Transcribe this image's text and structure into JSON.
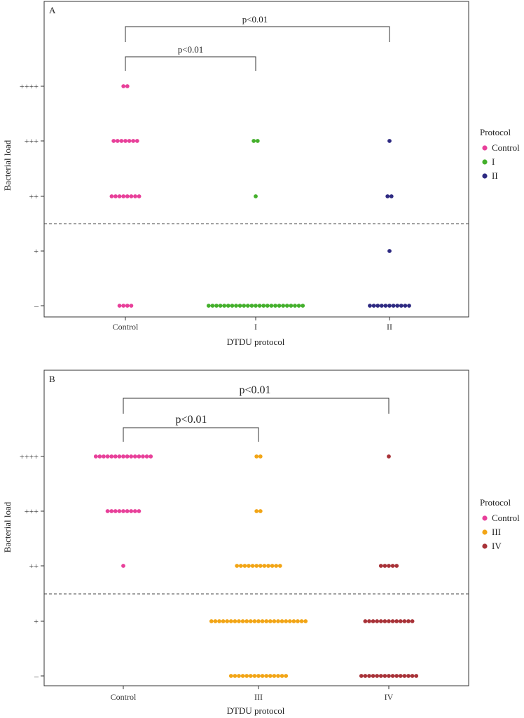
{
  "chart_data": [
    {
      "panel": "A",
      "type": "scatter",
      "subtype": "dot-plot",
      "xlabel": "DTDU protocol",
      "ylabel": "Bacterial load",
      "categories": [
        "Control",
        "I",
        "II"
      ],
      "y_levels": [
        "–",
        "+",
        "++",
        "+++",
        "++++"
      ],
      "colors": {
        "Control": "#e8409a",
        "I": "#44b02c",
        "II": "#2e2a82"
      },
      "counts": {
        "Control": [
          4,
          0,
          8,
          7,
          2
        ],
        "I": [
          25,
          0,
          1,
          2,
          0
        ],
        "II": [
          11,
          1,
          2,
          1,
          0
        ]
      },
      "threshold_between": [
        "+",
        "++"
      ],
      "comparisons": [
        {
          "groups": [
            "Control",
            "I"
          ],
          "label": "p<0.01"
        },
        {
          "groups": [
            "Control",
            "II"
          ],
          "label": "p<0.01"
        }
      ],
      "legend": {
        "title": "Protocol",
        "items": [
          "Control",
          "I",
          "II"
        ]
      }
    },
    {
      "panel": "B",
      "type": "scatter",
      "subtype": "dot-plot",
      "xlabel": "DTDU protocol",
      "ylabel": "Bacterial load",
      "categories": [
        "Control",
        "III",
        "IV"
      ],
      "y_levels": [
        "–",
        "+",
        "++",
        "+++",
        "++++"
      ],
      "colors": {
        "Control": "#e8409a",
        "III": "#f2a516",
        "IV": "#a83238"
      },
      "counts": {
        "Control": [
          0,
          0,
          1,
          9,
          15
        ],
        "III": [
          15,
          25,
          12,
          2,
          2
        ],
        "IV": [
          15,
          13,
          5,
          0,
          1
        ]
      },
      "threshold_between": [
        "+",
        "++"
      ],
      "comparisons": [
        {
          "groups": [
            "Control",
            "III"
          ],
          "label": "p<0.01"
        },
        {
          "groups": [
            "Control",
            "IV"
          ],
          "label": "p<0.01"
        }
      ],
      "legend": {
        "title": "Protocol",
        "items": [
          "Control",
          "III",
          "IV"
        ]
      }
    }
  ]
}
